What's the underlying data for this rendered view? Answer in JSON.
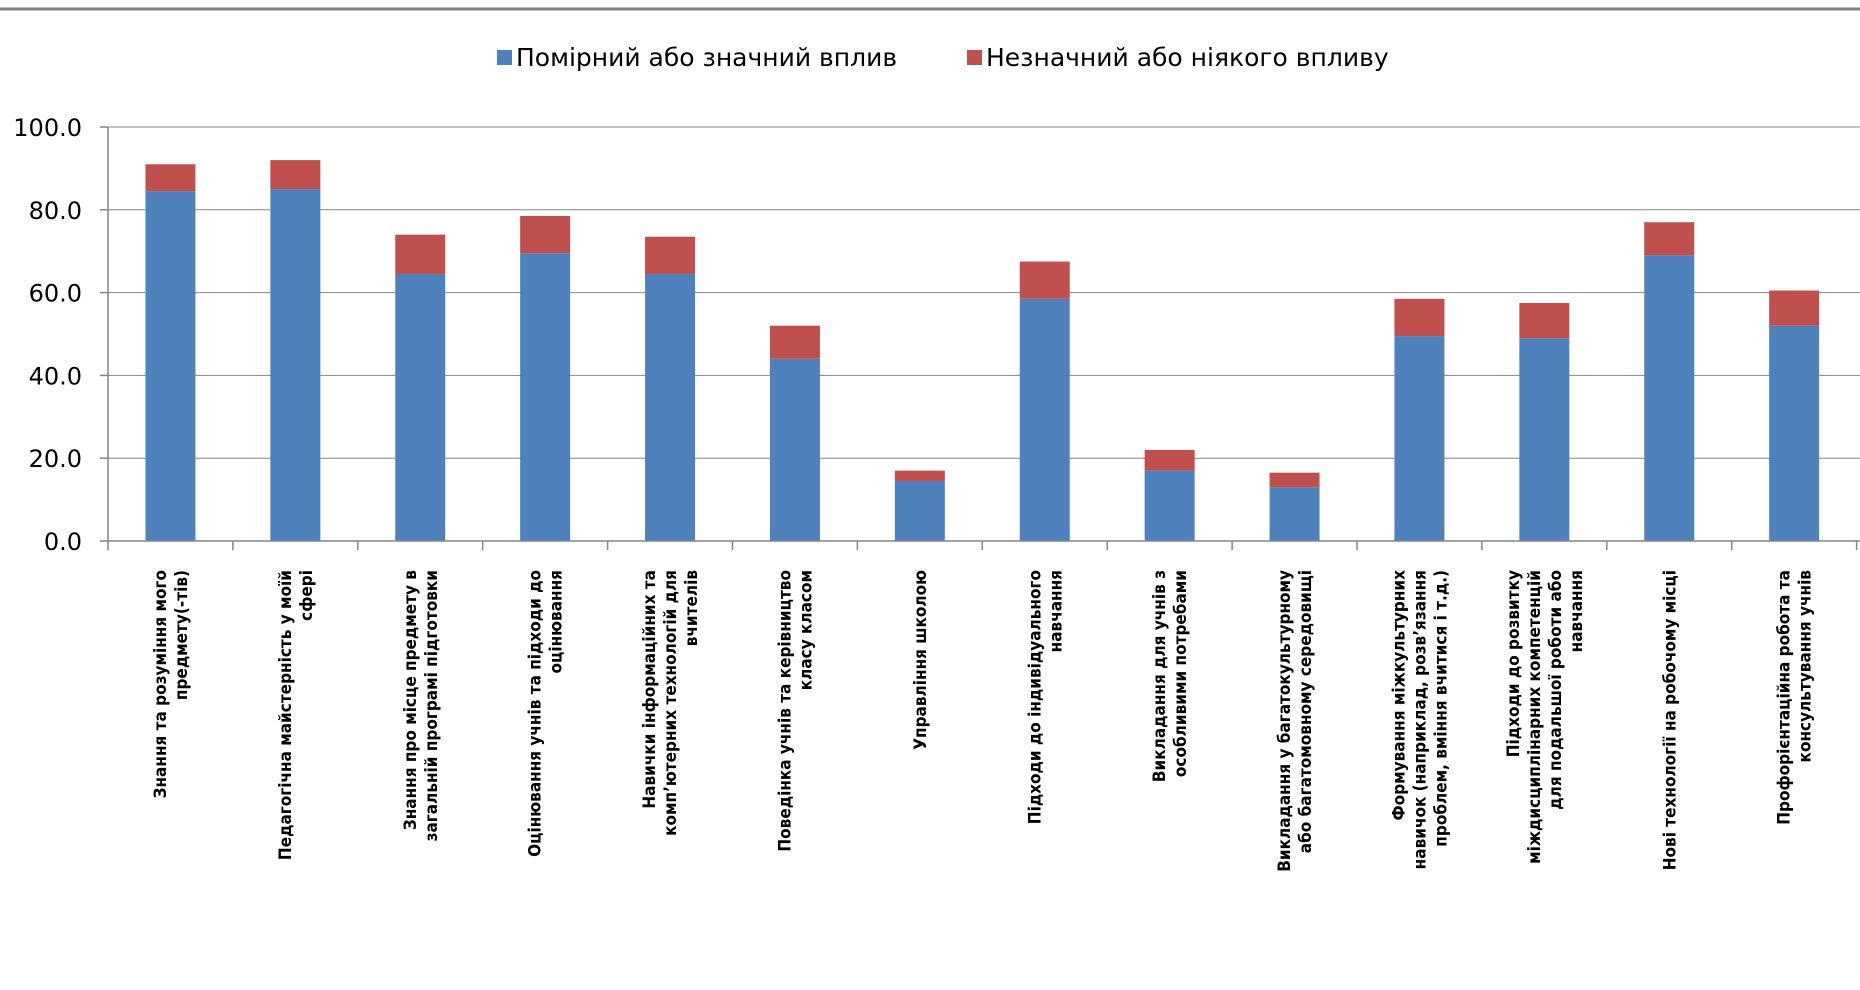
{
  "chart_data": {
    "type": "bar",
    "stacked": true,
    "title": "",
    "xlabel": "",
    "ylabel": "",
    "ylim": [
      0,
      100
    ],
    "yticks": [
      "0.0",
      "20.0",
      "40.0",
      "60.0",
      "80.0",
      "100.0"
    ],
    "grid": true,
    "legend_position": "top",
    "categories": [
      [
        "Знання та розуміння мого",
        "предмету(-тів)"
      ],
      [
        "Педагогічна майстерність у моїй",
        "сфері"
      ],
      [
        "Знання про місце предмету в",
        "загальній програмі підготовки"
      ],
      [
        "Оцінювання учнів та підходи до",
        "оцінювання"
      ],
      [
        "Навички інформаційних та",
        "комп’ютерних технологій для",
        "вчителів"
      ],
      [
        "Поведінка учнів та керівництво",
        "класу класом"
      ],
      [
        "Управління школою"
      ],
      [
        "Підходи до індивідуального",
        "навчання"
      ],
      [
        "Викладання для учнів з",
        "особливими потребами"
      ],
      [
        "Викладання у багатокультурному",
        "або багатомовному середовищі"
      ],
      [
        "Формування міжкультурних",
        "навичок (наприклад, розв’язання",
        "проблем, вміння вчитися і т.д.)"
      ],
      [
        "Підходи до розвитку",
        "міждисциплінарних компетенцій",
        "для подальшої роботи або",
        "навчання"
      ],
      [
        "Нові технології на робочому місці"
      ],
      [
        "Профорієнтаційна робота та",
        "консультування учнів"
      ]
    ],
    "series": [
      {
        "name": "Помірний або значний вплив",
        "color": "#4f81bd",
        "values": [
          84.5,
          85,
          64.5,
          69.5,
          64.5,
          44,
          14.5,
          58.5,
          17,
          13,
          49.5,
          49,
          69,
          52
        ]
      },
      {
        "name": "Незначний або ніякого впливу",
        "color": "#c0504d",
        "values": [
          6.5,
          7,
          9.5,
          9,
          9,
          8,
          2.5,
          9,
          5,
          3.5,
          9,
          8.5,
          8,
          8.5
        ]
      }
    ]
  }
}
